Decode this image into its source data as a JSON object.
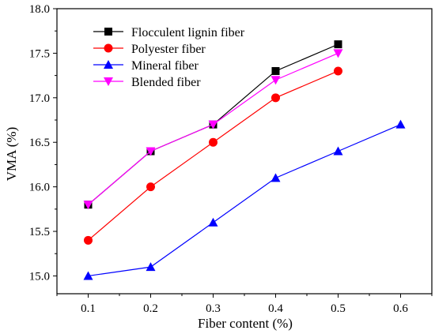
{
  "chart_data": {
    "type": "line",
    "xlabel": "Fiber content (%)",
    "ylabel": "VMA (%)",
    "xlim": [
      0.05,
      0.65
    ],
    "ylim": [
      14.8,
      18.0
    ],
    "x_ticks": [
      "0.1",
      "0.2",
      "0.3",
      "0.4",
      "0.5",
      "0.6"
    ],
    "y_ticks": [
      "15.0",
      "15.5",
      "16.0",
      "16.5",
      "17.0",
      "17.5",
      "18.0"
    ],
    "legend_position": "top-left",
    "grid": false,
    "series": [
      {
        "name": "Flocculent lignin fiber",
        "color": "#000000",
        "marker": "square",
        "x": [
          0.1,
          0.2,
          0.3,
          0.4,
          0.5
        ],
        "values": [
          15.8,
          16.4,
          16.7,
          17.3,
          17.6
        ]
      },
      {
        "name": "Polyester fiber",
        "color": "#ff0000",
        "marker": "circle",
        "x": [
          0.1,
          0.2,
          0.3,
          0.4,
          0.5
        ],
        "values": [
          15.4,
          16.0,
          16.5,
          17.0,
          17.3
        ]
      },
      {
        "name": "Mineral fiber",
        "color": "#0000ff",
        "marker": "triangle-up",
        "x": [
          0.1,
          0.2,
          0.3,
          0.4,
          0.5,
          0.6
        ],
        "values": [
          15.0,
          15.1,
          15.6,
          16.1,
          16.4,
          16.7
        ]
      },
      {
        "name": "Blended fiber",
        "color": "#ff00ff",
        "marker": "triangle-down",
        "x": [
          0.1,
          0.2,
          0.3,
          0.4,
          0.5
        ],
        "values": [
          15.8,
          16.4,
          16.7,
          17.2,
          17.5
        ]
      }
    ]
  }
}
